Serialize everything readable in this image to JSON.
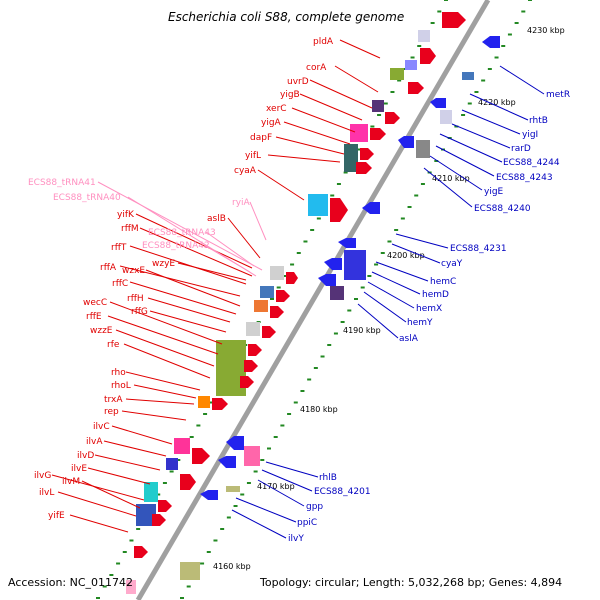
{
  "title": "Escherichia coli S88, complete genome",
  "footer": {
    "accession": "Accession: NC_011742",
    "topology": "Topology: circular; Length: 5,032,268 bp; Genes: 4,894"
  },
  "colors": {
    "backbone": "#a0a0a0",
    "forward_label": "#e00000",
    "reverse_label": "#0000c0",
    "trna_label": "#ff90c0",
    "tick": "#228822"
  },
  "ticks": [
    {
      "label": "4160 kbp"
    },
    {
      "label": "4170 kbp"
    },
    {
      "label": "4180 kbp"
    },
    {
      "label": "4190 kbp"
    },
    {
      "label": "4200 kbp"
    },
    {
      "label": "4210 kbp"
    },
    {
      "label": "4220 kbp"
    },
    {
      "label": "4230 kbp"
    }
  ],
  "forward_genes": [
    "pldA",
    "corA",
    "uvrD",
    "yigB",
    "xerC",
    "yigA",
    "dapF",
    "yifL",
    "cyaA",
    "yifK",
    "rffM",
    "rffT",
    "rffA",
    "wzxE",
    "rffC",
    "rffH",
    "rffG",
    "wecC",
    "rffE",
    "wzzE",
    "rfe",
    "rho",
    "rhoL",
    "trxA",
    "rep",
    "ilvC",
    "ilvA",
    "ilvD",
    "ilvE",
    "ilvG",
    "ilvM",
    "ilvL",
    "yifE"
  ],
  "trna_genes": [
    "ECS88_tRNA41",
    "ECS88_tRNA40",
    "ryiA",
    "aslB",
    "ECS88_tRNA43",
    "ECS88_tRNA42",
    "wzyE"
  ],
  "reverse_genes": [
    "metR",
    "rhtB",
    "yigI",
    "rarD",
    "ECS88_4244",
    "ECS88_4243",
    "yigE",
    "ECS88_4240",
    "ECS88_4231",
    "cyaY",
    "hemC",
    "hemD",
    "hemX",
    "hemY",
    "aslA",
    "rhlB",
    "ECS88_4201",
    "gpp",
    "ppiC",
    "ilvY"
  ]
}
